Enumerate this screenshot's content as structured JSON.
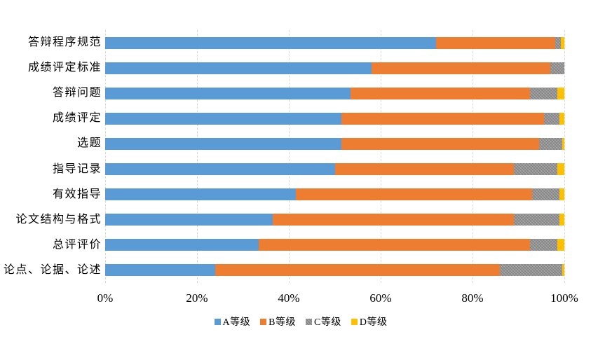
{
  "chart_data": {
    "type": "bar",
    "orientation": "horizontal",
    "stacked": true,
    "unit": "percent",
    "title": "",
    "xlabel": "",
    "ylabel": "",
    "xlim": [
      0,
      100
    ],
    "grid": "vertical-dashed",
    "categories": [
      "答辩程序规范",
      "成绩评定标准",
      "答辩问题",
      "成绩评定",
      "选题",
      "指导记录",
      "有效指导",
      "论文结构与格式",
      "总评评价",
      "论点、论据、论述"
    ],
    "series": [
      {
        "name": "A等级",
        "color": "#5B9BD5",
        "pattern": "solid",
        "values": [
          72,
          58,
          53.5,
          51.5,
          51.5,
          50,
          41.5,
          36.5,
          33.5,
          24
        ]
      },
      {
        "name": "B等级",
        "color": "#ED7D31",
        "pattern": "solid",
        "values": [
          26,
          39,
          39,
          44,
          43,
          39,
          51.5,
          52.5,
          59,
          62
        ]
      },
      {
        "name": "C等级",
        "color": "#A5A5A5",
        "pattern": "hatch",
        "values": [
          1.3,
          3,
          6,
          3.5,
          5,
          9.5,
          6,
          10,
          6,
          13.5
        ]
      },
      {
        "name": "D等级",
        "color": "#FFC000",
        "pattern": "solid",
        "values": [
          0.7,
          0,
          1.5,
          1,
          0.5,
          1.5,
          1,
          1,
          1.5,
          0.5
        ]
      }
    ],
    "x_axis": {
      "tick_labels": [
        "0%",
        "20%",
        "40%",
        "60%",
        "80%",
        "100%"
      ],
      "tick_values": [
        0,
        20,
        40,
        60,
        80,
        100
      ]
    },
    "legend": {
      "position": "bottom",
      "entries": [
        "A等级",
        "B等级",
        "C等级",
        "D等级"
      ]
    }
  },
  "colors": {
    "background": "#ffffff",
    "gridline": "#d9d9d9",
    "text": "#000000"
  }
}
